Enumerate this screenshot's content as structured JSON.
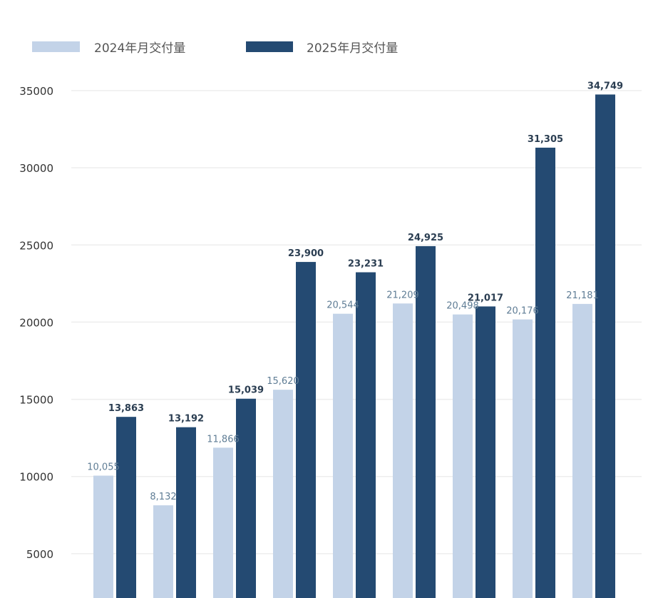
{
  "chart_data": {
    "type": "bar",
    "title": "",
    "xlabel": "",
    "ylabel": "",
    "ylim": [
      0,
      35000
    ],
    "yticks": [
      5000,
      10000,
      15000,
      20000,
      25000,
      30000,
      35000
    ],
    "grid": true,
    "legend_position": "top-left",
    "categories": [
      "",
      "",
      "",
      "",
      "",
      "",
      "",
      "",
      ""
    ],
    "series": [
      {
        "name": "2024年月交付量",
        "color": "#c3d3e8",
        "values": [
          10055,
          8132,
          11866,
          15620,
          20544,
          21209,
          20498,
          20176,
          21181
        ],
        "labels": [
          "10,055",
          "8,132",
          "11,866",
          "15,620",
          "20,544",
          "21,209",
          "20,498",
          "20,176",
          "21,181"
        ]
      },
      {
        "name": "2025年月交付量",
        "color": "#244a72",
        "values": [
          13863,
          13192,
          15039,
          23900,
          23231,
          24925,
          21017,
          31305,
          34749
        ],
        "labels": [
          "13,863",
          "13,192",
          "15,039",
          "23,900",
          "23,231",
          "24,925",
          "21,017",
          "31,305",
          "34,749"
        ]
      }
    ]
  }
}
